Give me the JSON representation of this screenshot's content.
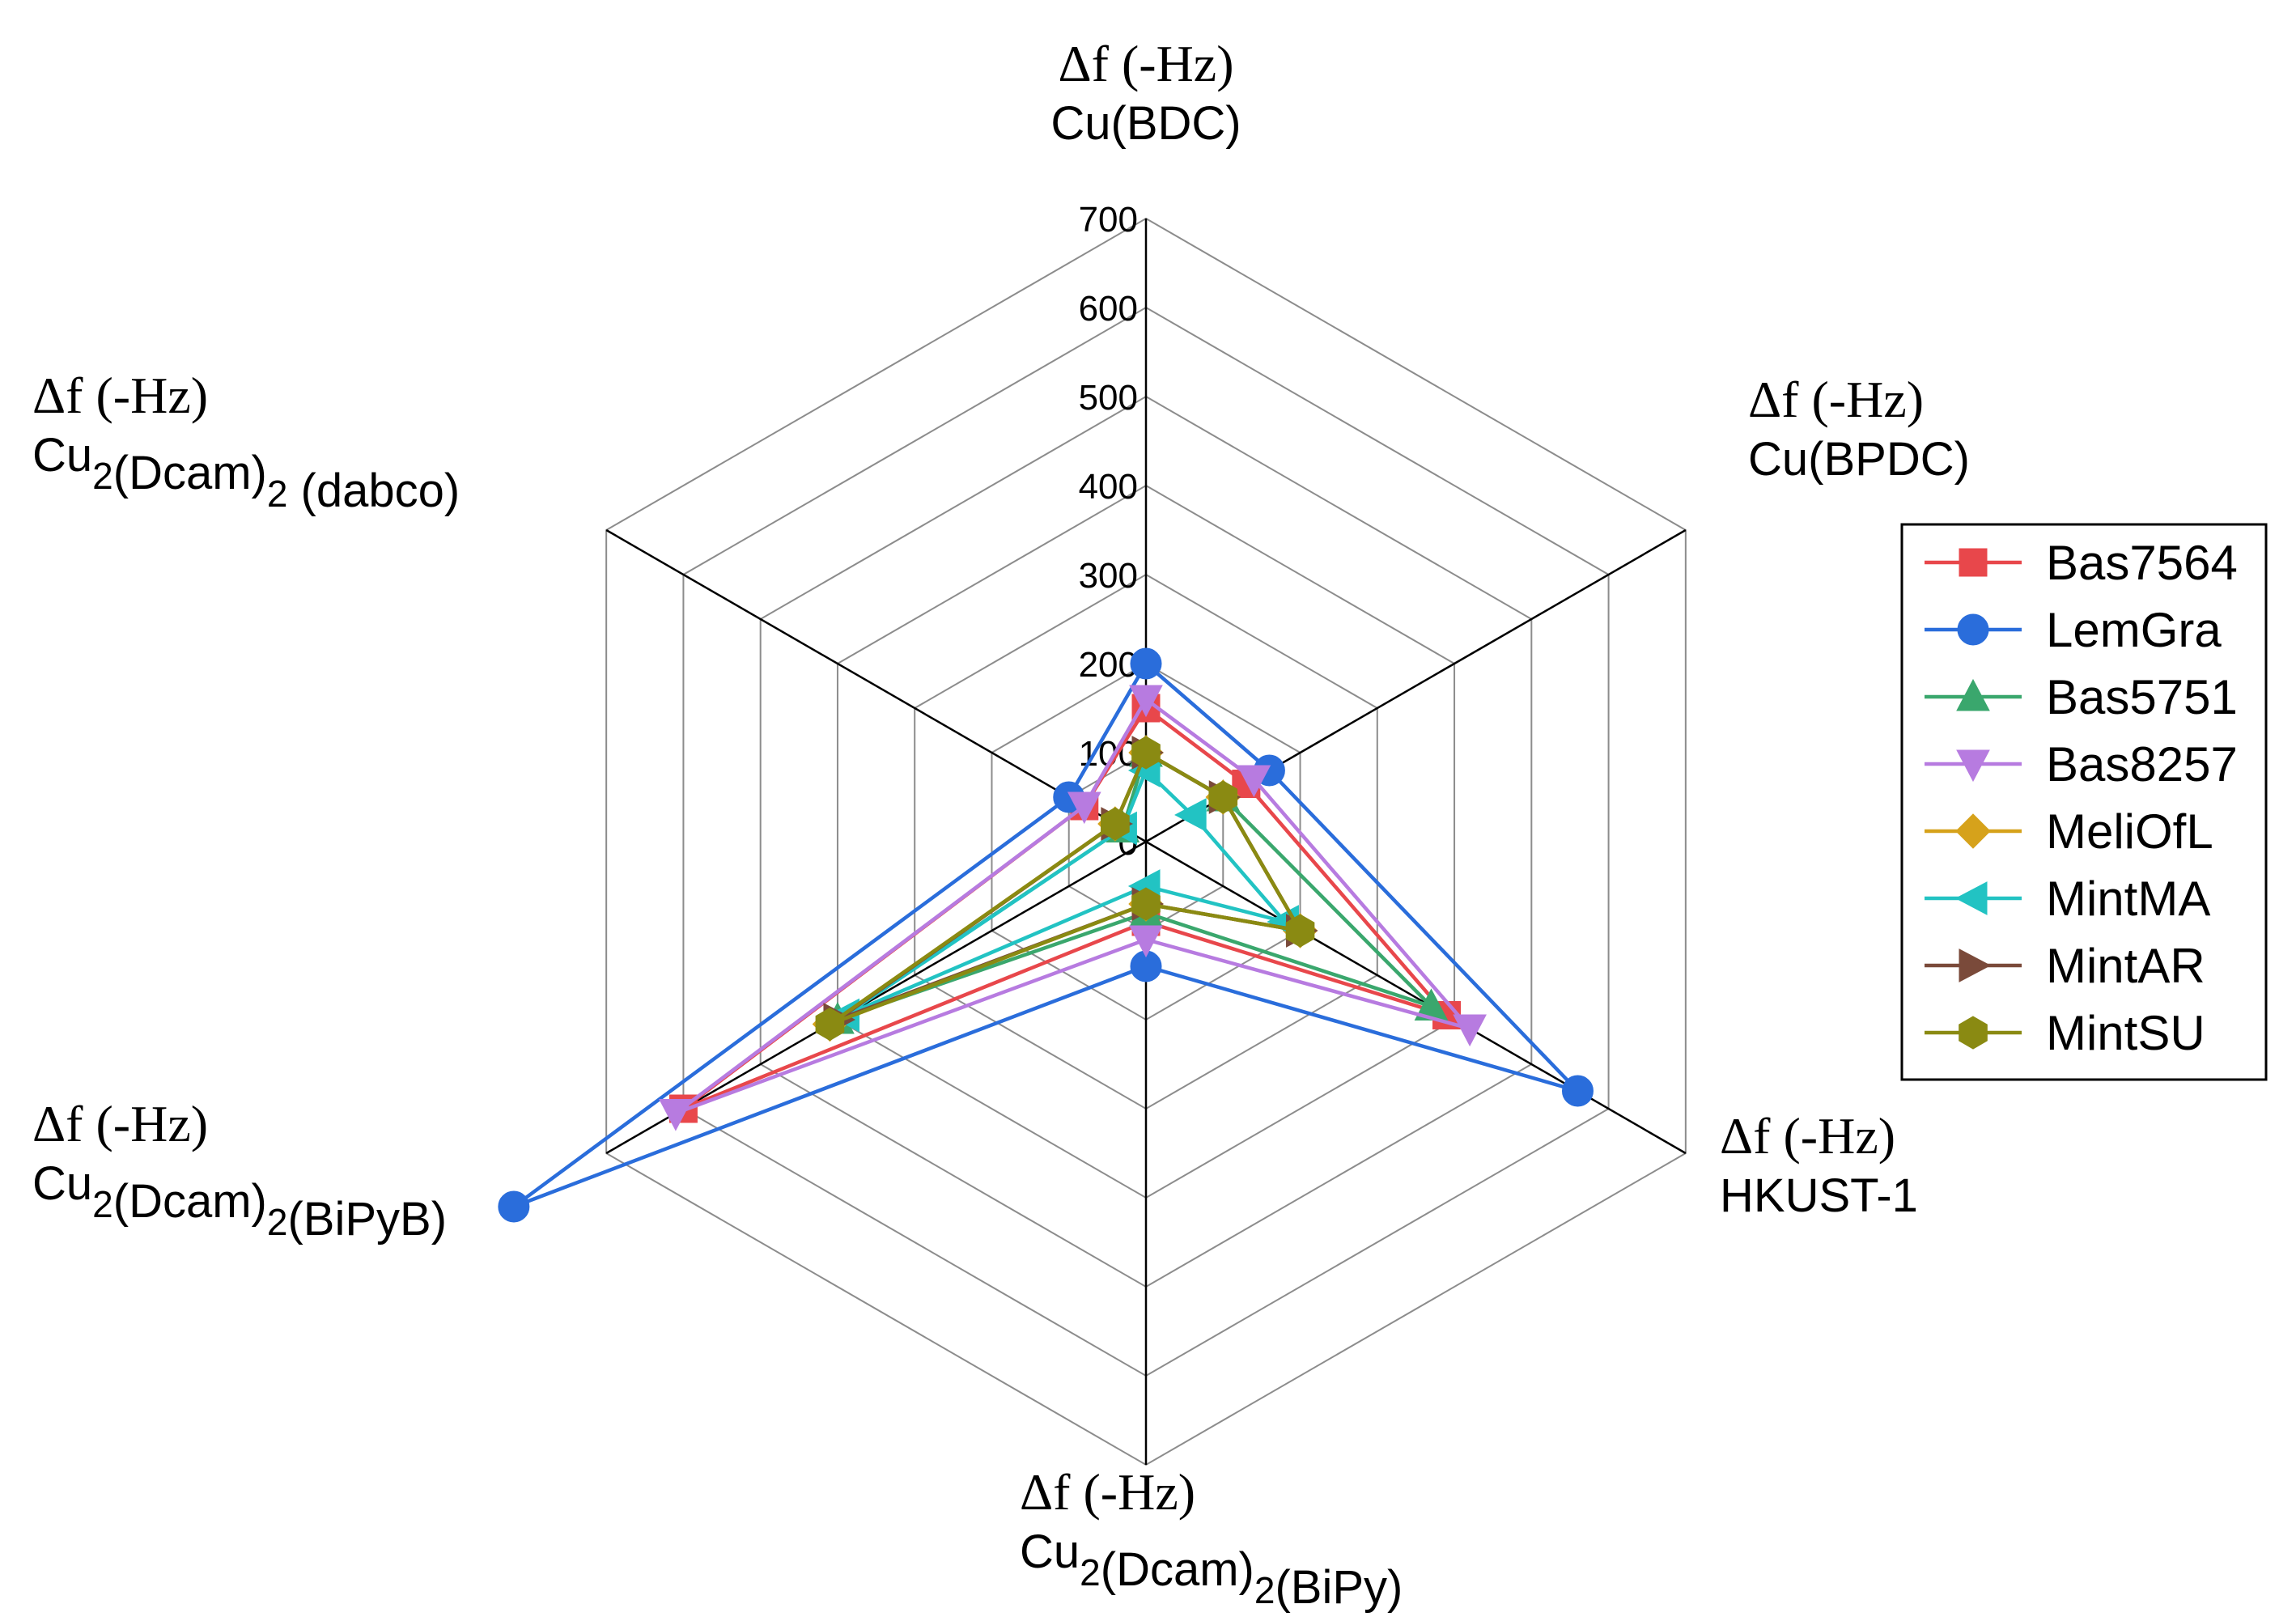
{
  "chart_data": {
    "type": "radar",
    "r_min": 0,
    "r_max": 700,
    "r_ticks": [
      0,
      100,
      200,
      300,
      400,
      500,
      600,
      700
    ],
    "axes": [
      {
        "hz_label": "Δf  (-Hz)",
        "name_parts": [
          {
            "text": "Cu(BDC)",
            "sub": false
          }
        ]
      },
      {
        "hz_label": "Δf  (-Hz)",
        "name_parts": [
          {
            "text": "Cu(BPDC)",
            "sub": false
          }
        ]
      },
      {
        "hz_label": "Δf  (-Hz)",
        "name_parts": [
          {
            "text": "HKUST-1",
            "sub": false
          }
        ]
      },
      {
        "hz_label": "Δf  (-Hz)",
        "name_parts": [
          {
            "text": "Cu",
            "sub": false
          },
          {
            "text": "2",
            "sub": true
          },
          {
            "text": "(Dcam)",
            "sub": false
          },
          {
            "text": "2",
            "sub": true
          },
          {
            "text": "(BiPy)",
            "sub": false
          }
        ]
      },
      {
        "hz_label": "Δf  (-Hz)",
        "name_parts": [
          {
            "text": "Cu",
            "sub": false
          },
          {
            "text": "2",
            "sub": true
          },
          {
            "text": "(Dcam)",
            "sub": false
          },
          {
            "text": "2",
            "sub": true
          },
          {
            "text": "(BiPyB)",
            "sub": false
          }
        ]
      },
      {
        "hz_label": "Δf  (-Hz)",
        "name_parts": [
          {
            "text": "Cu",
            "sub": false
          },
          {
            "text": "2",
            "sub": true
          },
          {
            "text": "(Dcam)",
            "sub": false
          },
          {
            "text": "2",
            "sub": true
          },
          {
            "text": " (dabco)",
            "sub": false
          }
        ]
      }
    ],
    "series": [
      {
        "name": "Bas7564",
        "color": "#e8474b",
        "marker": "square",
        "values": [
          150,
          130,
          390,
          90,
          600,
          80
        ]
      },
      {
        "name": "LemGra",
        "color": "#2a6ddb",
        "marker": "circle",
        "values": [
          200,
          160,
          560,
          140,
          820,
          100
        ]
      },
      {
        "name": "Bas5751",
        "color": "#3aa76d",
        "marker": "triangle-up",
        "values": [
          100,
          100,
          370,
          80,
          400,
          30
        ]
      },
      {
        "name": "Bas8257",
        "color": "#b77be0",
        "marker": "triangle-down",
        "values": [
          160,
          140,
          420,
          110,
          610,
          80
        ]
      },
      {
        "name": "MeliOfL",
        "color": "#d6a21b",
        "marker": "diamond",
        "values": [
          100,
          100,
          200,
          70,
          410,
          40
        ]
      },
      {
        "name": "MintMA",
        "color": "#22c3c3",
        "marker": "triangle-left",
        "values": [
          80,
          60,
          180,
          50,
          390,
          30
        ]
      },
      {
        "name": "MintAR",
        "color": "#7a4a3a",
        "marker": "triangle-right",
        "values": [
          100,
          100,
          200,
          70,
          400,
          40
        ]
      },
      {
        "name": "MintSU",
        "color": "#8a8a12",
        "marker": "hexagon",
        "values": [
          100,
          100,
          200,
          70,
          410,
          40
        ]
      }
    ],
    "legend_position": "right"
  }
}
